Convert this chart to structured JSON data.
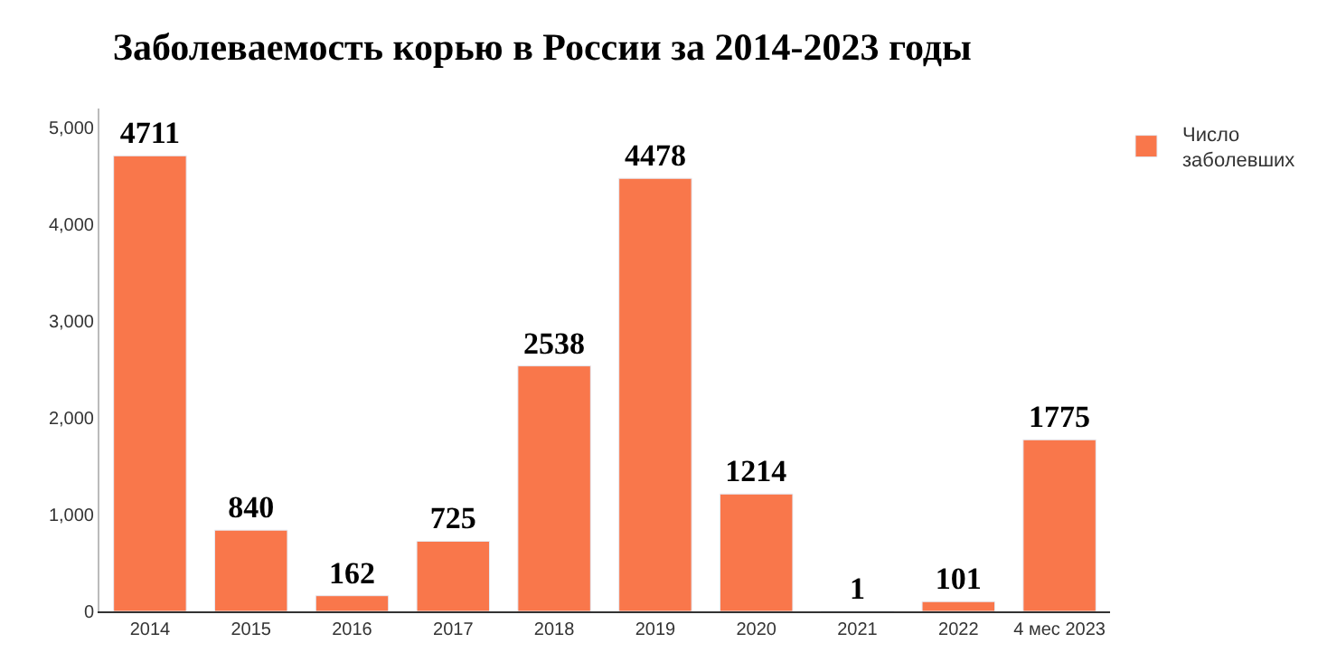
{
  "chart_data": {
    "type": "bar",
    "title": "Заболеваемость корью в России за 2014-2023 годы",
    "categories": [
      "2014",
      "2015",
      "2016",
      "2017",
      "2018",
      "2019",
      "2020",
      "2021",
      "2022",
      "4 мес 2023"
    ],
    "series": [
      {
        "name": "Число заболевших",
        "color": "#f9774b",
        "values": [
          4711,
          840,
          162,
          725,
          2538,
          4478,
          1214,
          1,
          101,
          1775
        ]
      }
    ],
    "data_labels": true,
    "ylim": [
      0,
      5200
    ],
    "yticks": [
      {
        "value": 0,
        "label": "0"
      },
      {
        "value": 1000,
        "label": "1,000"
      },
      {
        "value": 2000,
        "label": "2,000"
      },
      {
        "value": 3000,
        "label": "3,000"
      },
      {
        "value": 4000,
        "label": "4,000"
      },
      {
        "value": 5000,
        "label": "5,000"
      }
    ],
    "grid": false,
    "legend": "top right"
  }
}
